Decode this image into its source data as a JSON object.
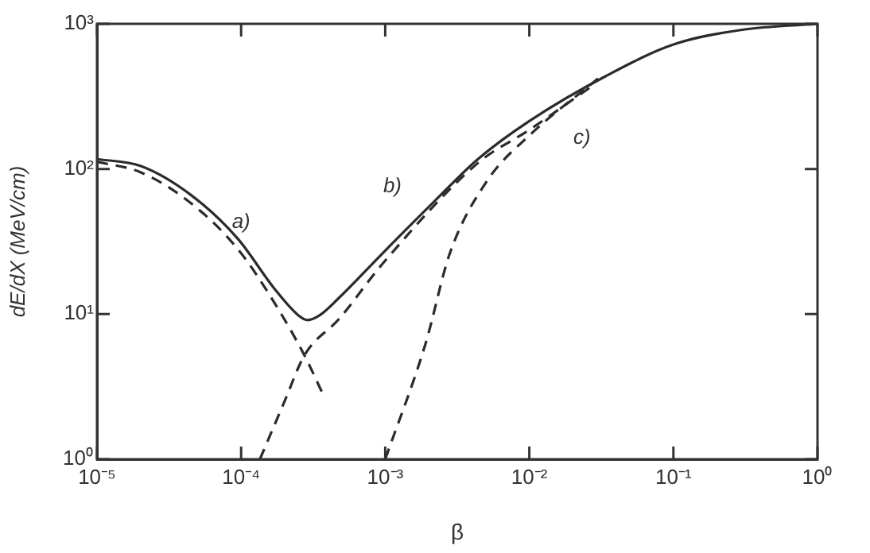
{
  "chart_data": {
    "type": "line",
    "xlabel": "β",
    "ylabel": "dE/dX (MeV/cm)",
    "log": "xy",
    "grid": false,
    "legend": false,
    "marker": "none",
    "xlim": [
      1e-05,
      1
    ],
    "ylim": [
      1,
      1000
    ],
    "xticks": [
      {
        "value": 1e-05,
        "label": "10⁻⁵"
      },
      {
        "value": 0.0001,
        "label": "10⁻⁴"
      },
      {
        "value": 0.001,
        "label": "10⁻³"
      },
      {
        "value": 0.01,
        "label": "10⁻²"
      },
      {
        "value": 0.1,
        "label": "10⁻¹"
      },
      {
        "value": 1,
        "label": "10⁰"
      }
    ],
    "yticks": [
      {
        "value": 1,
        "label": "10⁰"
      },
      {
        "value": 10,
        "label": "10¹"
      },
      {
        "value": 100,
        "label": "10²"
      },
      {
        "value": 1000,
        "label": "10³"
      }
    ],
    "series": [
      {
        "color": "#2b2b2b",
        "line_style": "solid",
        "x": [
          1e-05,
          2e-05,
          4.5e-05,
          9.5e-05,
          0.00017,
          0.00025,
          0.00029,
          0.00035,
          0.00048,
          0.00095,
          0.0022,
          0.0044,
          0.01,
          0.036,
          0.1,
          0.3,
          1
        ],
        "values": [
          117,
          105,
          66,
          33,
          15,
          9.8,
          9.1,
          9.8,
          13,
          26,
          60,
          117,
          214,
          450,
          720,
          910,
          1000
        ]
      },
      {
        "name": "a)",
        "color": "#2b2b2b",
        "line_style": "dashed",
        "x": [
          1e-05,
          2e-05,
          4.5e-05,
          9.5e-05,
          0.00017,
          0.000275,
          0.00037
        ],
        "values": [
          112,
          95,
          58,
          28,
          12,
          5.2,
          2.8
        ]
      },
      {
        "name": "b)",
        "color": "#2b2b2b",
        "line_style": "dashed",
        "x": [
          0.000135,
          0.0002,
          0.000275,
          0.00048,
          0.00095,
          0.0044,
          0.01,
          0.028
        ],
        "values": [
          1,
          2.5,
          5.2,
          9.3,
          22,
          110,
          186,
          380
        ]
      },
      {
        "name": "c)",
        "color": "#2b2b2b",
        "line_style": "dashed",
        "x": [
          0.001,
          0.0019,
          0.0028,
          0.0051,
          0.01,
          0.03
        ],
        "values": [
          1,
          6.2,
          26,
          83,
          170,
          420
        ]
      }
    ]
  }
}
